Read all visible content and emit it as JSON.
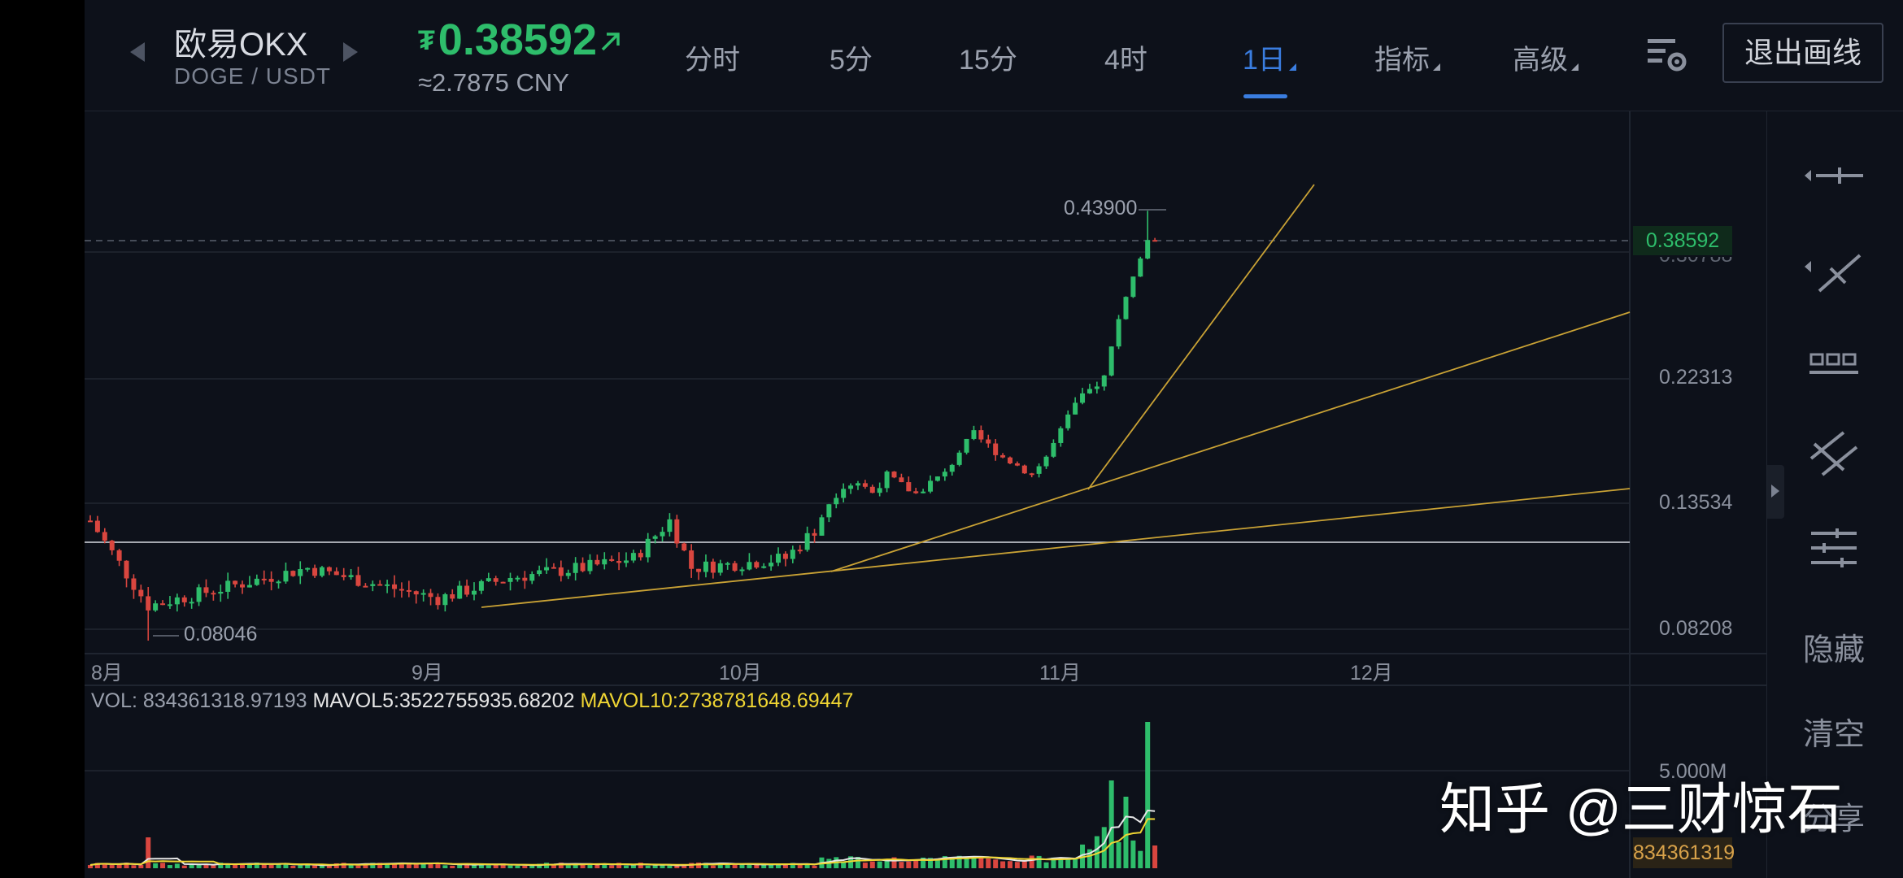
{
  "header": {
    "exchange_name": "欧易OKX",
    "pair": "DOGE / USDT",
    "price": "0.38592",
    "currency_symbol": "₮",
    "cny_price": "≈2.7875 CNY",
    "tabs": [
      {
        "label": "分时"
      },
      {
        "label": "5分"
      },
      {
        "label": "15分"
      },
      {
        "label": "4时"
      },
      {
        "label": "1日",
        "active": true
      },
      {
        "label": "指标"
      },
      {
        "label": "高级"
      }
    ],
    "exit_label": "退出画线"
  },
  "chart": {
    "x_labels": [
      "8月",
      "9月",
      "10月",
      "11月",
      "12月"
    ],
    "y_labels": [
      "0.38592",
      "0.30788",
      "0.22313",
      "0.13534",
      "0.08208"
    ],
    "high_label": "0.43900",
    "low_label": "0.08046",
    "current_price_tag": "0.38592"
  },
  "volume": {
    "vol_text": "VOL: 834361318.97193",
    "mavol5_text": "MAVOL5:3522755935.68202",
    "mavol10_text": "MAVOL10:2738781648.69447",
    "tick_label": "5.000M",
    "current_tag": "834361319"
  },
  "toolbar": {
    "hide_label": "隐藏",
    "clear_label": "清空",
    "share_label": "分享"
  },
  "watermark": "知乎 @三财惊石",
  "colors": {
    "up": "#2ebd6b",
    "down": "#d9463f",
    "accent": "#3a7de0",
    "trend": "#c9a235"
  },
  "chart_data": {
    "type": "candlestick",
    "x_axis": [
      "8月",
      "9月",
      "10月",
      "11月",
      "12月"
    ],
    "y_ticks": [
      0.08208,
      0.13534,
      0.22313,
      0.30788,
      0.38592
    ],
    "high": 0.439,
    "low": 0.08046,
    "last": 0.38592
  }
}
